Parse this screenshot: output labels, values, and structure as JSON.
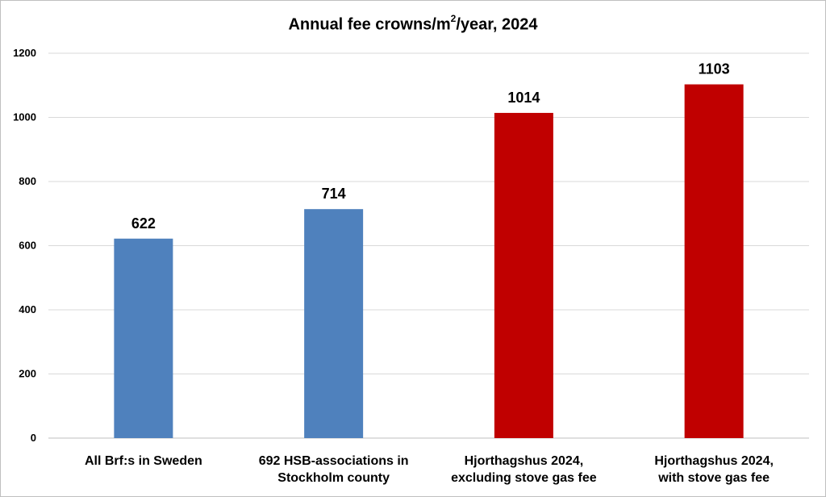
{
  "chart_data": {
    "type": "bar",
    "title_prefix": "Annual fee crowns/m",
    "title_superscript": "2",
    "title_suffix": "/year, 2024",
    "categories": [
      [
        "All Brf:s in Sweden"
      ],
      [
        "692 HSB-associations in",
        "Stockholm county"
      ],
      [
        "Hjorthagshus 2024,",
        "excluding stove gas fee"
      ],
      [
        "Hjorthagshus 2024,",
        "with stove gas fee"
      ]
    ],
    "values": [
      622,
      714,
      1014,
      1103
    ],
    "value_labels": [
      "622",
      "714",
      "1014",
      "1103"
    ],
    "bar_colors": [
      "#4f81bd",
      "#4f81bd",
      "#c00000",
      "#c00000"
    ],
    "yticks": [
      0,
      200,
      400,
      600,
      800,
      1000,
      1200
    ],
    "ylim": [
      0,
      1200
    ],
    "grid": true,
    "legend": "none",
    "xlabel": "",
    "ylabel": ""
  }
}
